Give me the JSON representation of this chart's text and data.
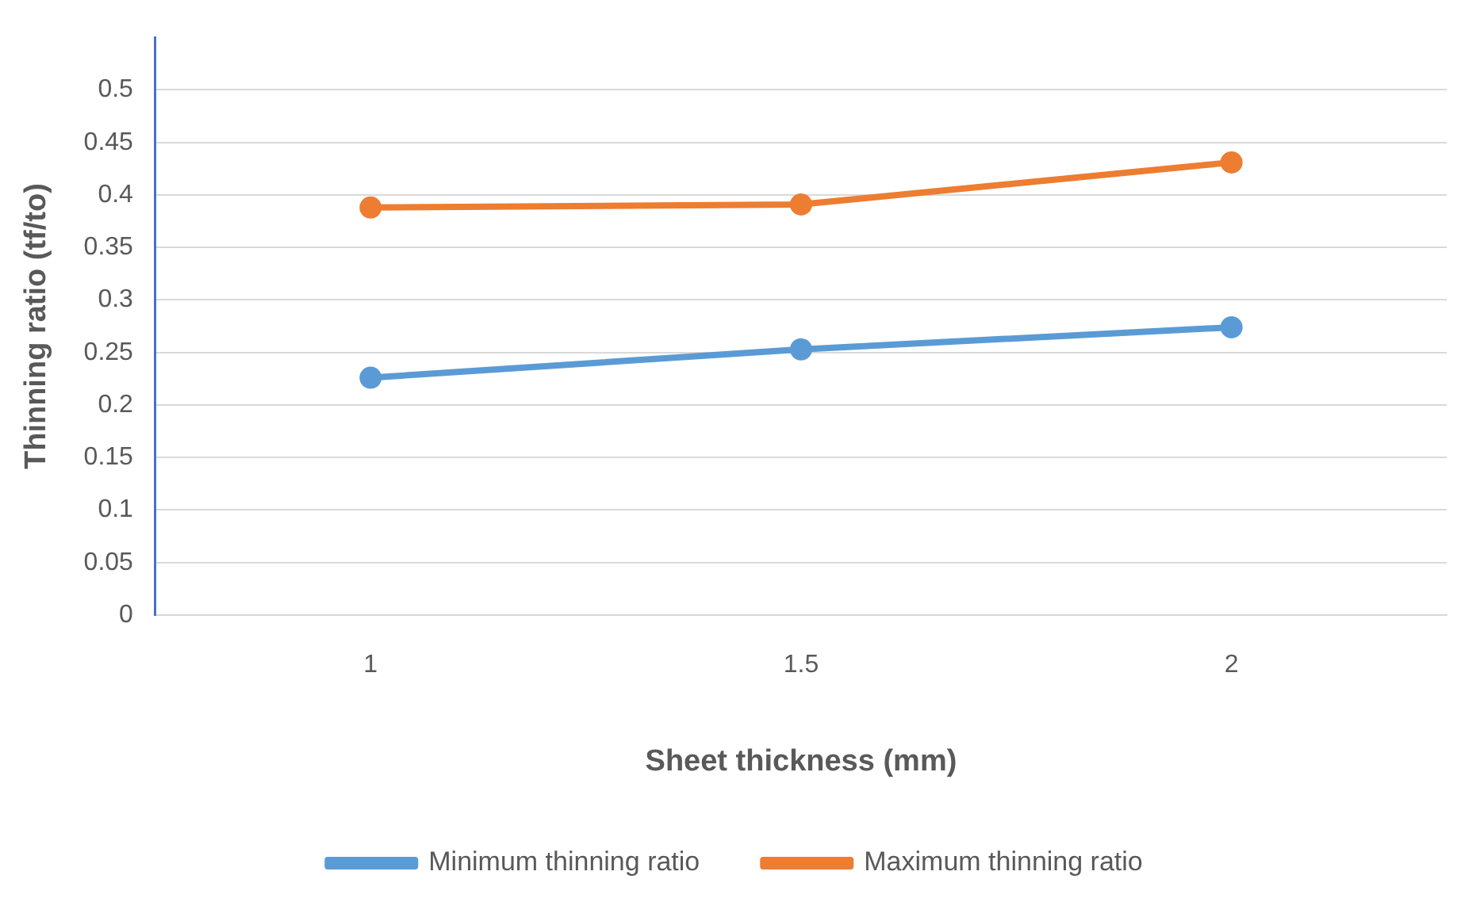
{
  "chart_data": {
    "type": "line",
    "xlabel": "Sheet thickness (mm)",
    "ylabel": "Thinning ratio (tf/to)",
    "categories": [
      "1",
      "1.5",
      "2"
    ],
    "series": [
      {
        "name": "Minimum thinning ratio",
        "color": "#5b9bd5",
        "values": [
          0.226,
          0.253,
          0.274
        ]
      },
      {
        "name": "Maximum thinning ratio",
        "color": "#ed7d31",
        "values": [
          0.388,
          0.391,
          0.431
        ]
      }
    ],
    "ylim": [
      0,
      0.55
    ],
    "yticks": [
      0,
      0.05,
      0.1,
      0.15,
      0.2,
      0.25,
      0.3,
      0.35,
      0.4,
      0.45,
      0.5
    ],
    "grid": "y",
    "legend": "bottom",
    "marker": "circle",
    "line_style": "solid"
  }
}
